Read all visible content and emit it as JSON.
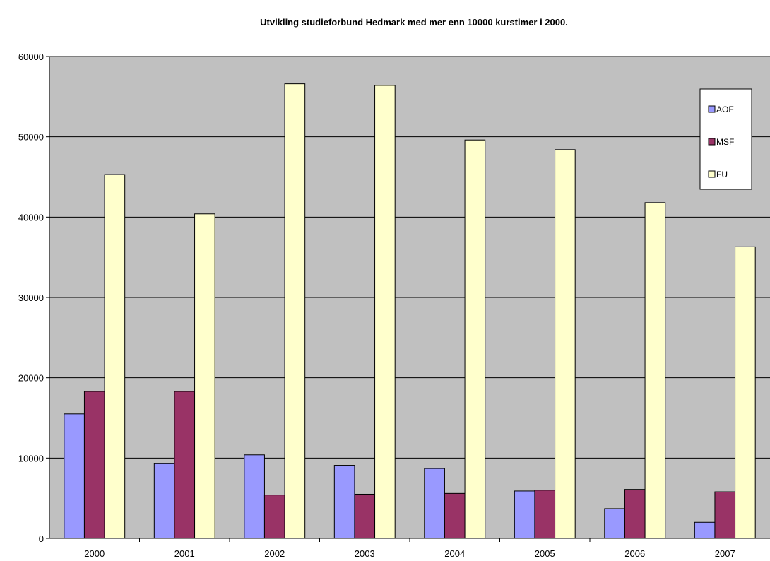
{
  "chart_data": {
    "type": "bar",
    "title": "Utvikling studieforbund Hedmark med mer enn 10000 kurstimer i 2000.",
    "xlabel": "",
    "ylabel": "",
    "ylim": [
      0,
      60000
    ],
    "yticks": [
      "0",
      "10000",
      "20000",
      "30000",
      "40000",
      "50000",
      "60000"
    ],
    "categories": [
      "2000",
      "2001",
      "2002",
      "2003",
      "2004",
      "2005",
      "2006",
      "2007"
    ],
    "series": [
      {
        "name": "AOF",
        "color": "#9999ff",
        "values": [
          15500,
          9300,
          10400,
          9100,
          8700,
          5900,
          3700,
          2000
        ]
      },
      {
        "name": "MSF",
        "color": "#993366",
        "values": [
          18300,
          18300,
          5400,
          5500,
          5600,
          6000,
          6100,
          5800
        ]
      },
      {
        "name": "FU",
        "color": "#ffffcc",
        "values": [
          45300,
          40400,
          56600,
          56400,
          49600,
          48400,
          41800,
          36300
        ]
      }
    ],
    "grid": true,
    "plot_background": "#c0c0c0",
    "legend_position": "right"
  }
}
